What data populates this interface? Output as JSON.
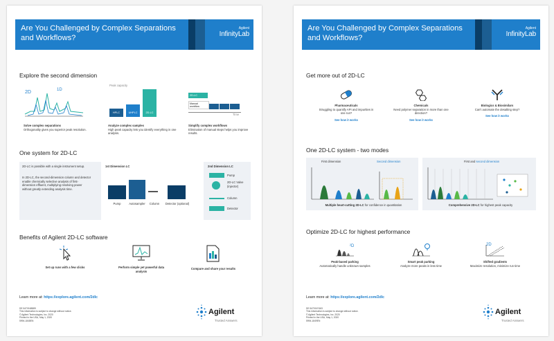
{
  "banner": {
    "title": "Are You Challenged by Complex Separations and Workflows?",
    "brand_small": "Agilent",
    "brand_main": "InfinityLab"
  },
  "left": {
    "section1_title": "Explore the second dimension",
    "chart1": {
      "label_2d": "2D",
      "label_1d": "1D"
    },
    "chart2": {
      "axis_label": "Peak capacity",
      "bars": [
        "HPLC",
        "UHPLC",
        "2D-LC"
      ]
    },
    "chart3": {
      "bar1": "2D-LC",
      "bar2": "Manual workflow",
      "axis_label": "Time"
    },
    "col1": {
      "title": "Solve complex separations",
      "body": "Orthogonality gives you superior peak resolution."
    },
    "col2": {
      "title": "Analyze complex samples",
      "body": "High peak capacity lets you identify everything in one analysis."
    },
    "col3": {
      "title": "Simplify complex workflows",
      "body": "Elimination of manual steps helps you improve results."
    },
    "section2_title": "One system for 2D-LC",
    "sys_text1": "2D-LC is possible with a single instrument setup.",
    "sys_text2": "In 2D-LC, the second-dimension column and detector enable chemically selective analysis of first-dimension effluent, multiplying resolving power without greatly extending analysis time.",
    "dim1_label": "1st Dimension LC",
    "dim2_label": "2nd Dimension LC",
    "diagram": {
      "pump": "Pump",
      "autosampler": "Autosampler",
      "column": "Column",
      "detector": "Detector (optional)",
      "valve": "2D-LC Valve (injector)",
      "pump2": "Pump",
      "column2": "Column",
      "detector2": "Detector"
    },
    "section3_title": "Benefits of Agilent 2D-LC software",
    "b1": "Set up runs with a few clicks",
    "b2": "Perform simple yet powerful data analysis",
    "b3": "Compare and share your results",
    "learn_prefix": "Learn more at: ",
    "learn_url": "https://explore.agilent.com/2dlc",
    "legal": [
      "DE.5470168889",
      "This information is subject to change without notice.",
      "© Agilent Technologies, Inc. 2020",
      "Printed in the USA, May 1, 2020",
      "5994-1848EN"
    ]
  },
  "right": {
    "section1_title": "Get more out of 2D-LC",
    "c1": {
      "title": "Pharmaceuticals",
      "body": "Struggling to quantify API and impurities in one run?",
      "link": "See how it works"
    },
    "c2": {
      "title": "Chemicals",
      "body": "Need polymer separation in more than one direction?",
      "link": "See how it works"
    },
    "c3": {
      "title": "Biologics & Biosimilars",
      "body": "Can't automate the desalting step?",
      "link": "See how it works"
    },
    "section2_title": "One 2D-LC system - two modes",
    "m1": {
      "first": "First dimension",
      "second": "Second dimension",
      "caption_bold": "Multiple heart-cutting 2D-LC",
      "caption": " for confidence in quantitation"
    },
    "m2": {
      "first": "First and ",
      "second": "second dimension",
      "caption_bold": "Comprehensive 2D-LC",
      "caption": " for highest peak capacity"
    },
    "section3_title": "Optimize 2D-LC for highest performance",
    "o1": {
      "title": "Peak-based parking",
      "body": "Automatically handle unknown samples"
    },
    "o2": {
      "title": "Smart peak parking",
      "body": "Analyze more peaks in less time"
    },
    "o3": {
      "title": "Shifted gradients",
      "body": "Maximize resolution, minimize run time"
    },
    "learn_prefix": "Learn more at: ",
    "learn_url": "https://explore.agilent.com/2dlc",
    "legal": [
      "DE.5470167463",
      "This information is subject to change without notice.",
      "© Agilent Technologies, Inc. 2020",
      "Printed in the USA, May 1, 2020",
      "5994-1849EN"
    ]
  },
  "logo": {
    "word": "Agilent",
    "tagline": "Trusted Answers"
  },
  "colors": {
    "blue": "#1f7fcb",
    "navy": "#0a3d66",
    "teal": "#2bb3a4",
    "green": "#58b947"
  }
}
